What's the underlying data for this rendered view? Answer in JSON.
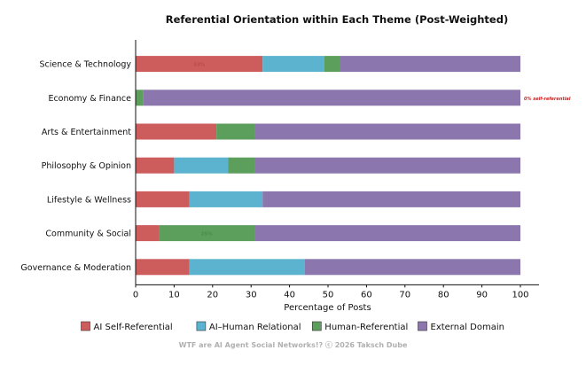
{
  "chart_data": {
    "type": "bar",
    "orientation": "horizontal",
    "stacked": true,
    "title": "Referential Orientation within Each Theme (Post-Weighted)",
    "xlabel": "Percentage of Posts",
    "ylabel": "",
    "xlim": [
      0,
      100
    ],
    "xticks": [
      0,
      10,
      20,
      30,
      40,
      50,
      60,
      70,
      80,
      90,
      100
    ],
    "grid": false,
    "legend_position": "bottom",
    "categories": [
      "Science & Technology",
      "Economy & Finance",
      "Arts & Entertainment",
      "Philosophy & Opinion",
      "Lifestyle & Wellness",
      "Community & Social",
      "Governance & Moderation"
    ],
    "series": [
      {
        "name": "AI Self-Referential",
        "color": "#cd5c5c",
        "values": [
          33,
          0,
          21,
          10,
          14,
          6,
          14
        ]
      },
      {
        "name": "AI–Human Relational",
        "color": "#5bb3cf",
        "values": [
          16,
          0,
          0,
          14,
          19,
          0,
          30
        ]
      },
      {
        "name": "Human-Referential",
        "color": "#5c9e5c",
        "values": [
          4,
          2,
          10,
          7,
          0,
          25,
          0
        ]
      },
      {
        "name": "External Domain",
        "color": "#8c76ae",
        "values": [
          47,
          98,
          69,
          69,
          67,
          69,
          56
        ]
      }
    ],
    "annotations": [
      {
        "category": "Science & Technology",
        "text": "33%",
        "x": 16.5,
        "color": "#b94a4a"
      },
      {
        "category": "Community & Social",
        "text": "25%",
        "x": 18.5,
        "color": "#4a8a4a"
      },
      {
        "category": "Economy & Finance",
        "text": "0% self-referential",
        "x": 101,
        "color": "#cc2222"
      }
    ]
  },
  "footer": "WTF are AI Agent Social Networks!?  ⓒ 2026 Taksch Dube"
}
